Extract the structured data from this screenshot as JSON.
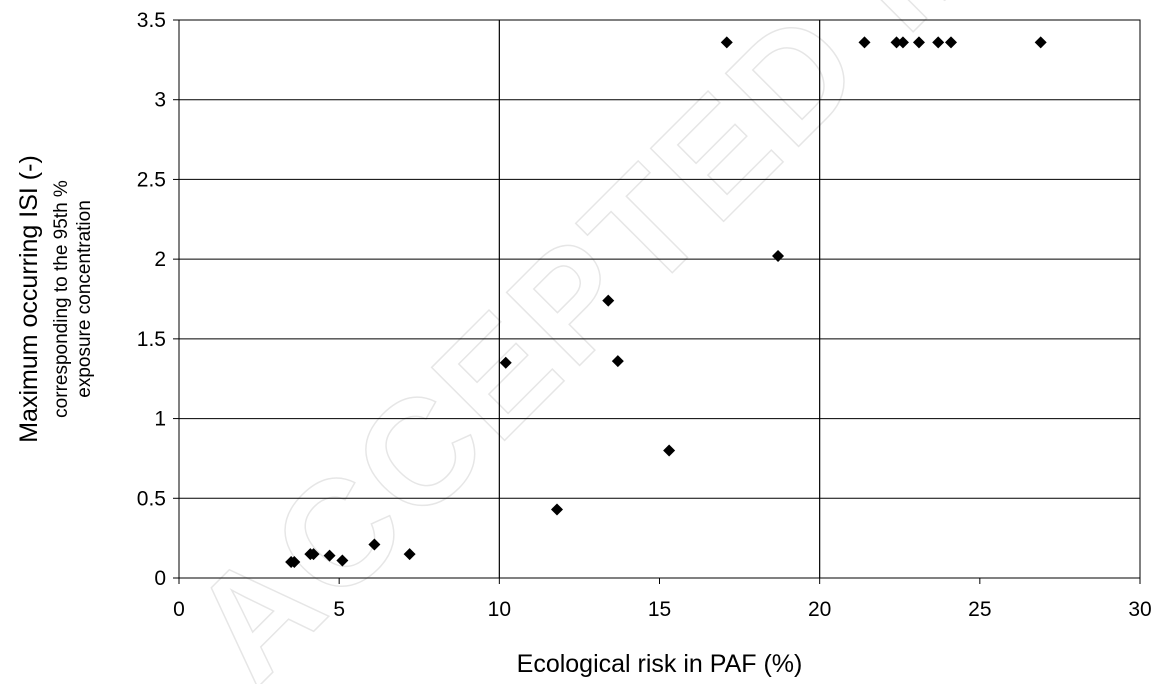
{
  "watermark": "ACCEPTED MANUSCRIPT",
  "chart_data": {
    "type": "scatter",
    "xlabel": "Ecological risk in PAF (%)",
    "ylabel_main": "Maximum occurring ISI (-)",
    "ylabel_sub1": "corresponding to the 95th %",
    "ylabel_sub2": "exposure concentration",
    "xlim": [
      0,
      30
    ],
    "ylim": [
      0,
      3.5
    ],
    "x_ticks": [
      0,
      5,
      10,
      15,
      20,
      25,
      30
    ],
    "y_ticks": [
      0,
      0.5,
      1,
      1.5,
      2,
      2.5,
      3,
      3.5
    ],
    "x_tick_labels": [
      "0",
      "5",
      "10",
      "15",
      "20",
      "25",
      "30"
    ],
    "y_tick_labels": [
      "0",
      "0.5",
      "1",
      "1.5",
      "2",
      "2.5",
      "3",
      "3.5"
    ],
    "grid": "horizontal gridlines; vertical lines at x = 10 and x = 20",
    "vertical_lines": [
      10,
      20
    ],
    "marker": "diamond",
    "marker_color": "#000000",
    "points": [
      {
        "x": 3.5,
        "y": 0.1
      },
      {
        "x": 3.6,
        "y": 0.1
      },
      {
        "x": 4.1,
        "y": 0.15
      },
      {
        "x": 4.2,
        "y": 0.15
      },
      {
        "x": 4.7,
        "y": 0.14
      },
      {
        "x": 5.1,
        "y": 0.11
      },
      {
        "x": 6.1,
        "y": 0.21
      },
      {
        "x": 7.2,
        "y": 0.15
      },
      {
        "x": 10.2,
        "y": 1.35
      },
      {
        "x": 11.8,
        "y": 0.43
      },
      {
        "x": 13.4,
        "y": 1.74
      },
      {
        "x": 13.7,
        "y": 1.36
      },
      {
        "x": 15.3,
        "y": 0.8
      },
      {
        "x": 17.1,
        "y": 3.36
      },
      {
        "x": 18.7,
        "y": 2.02
      },
      {
        "x": 21.4,
        "y": 3.36
      },
      {
        "x": 22.4,
        "y": 3.36
      },
      {
        "x": 22.6,
        "y": 3.36
      },
      {
        "x": 23.1,
        "y": 3.36
      },
      {
        "x": 23.7,
        "y": 3.36
      },
      {
        "x": 24.1,
        "y": 3.36
      },
      {
        "x": 26.9,
        "y": 3.36
      }
    ]
  }
}
